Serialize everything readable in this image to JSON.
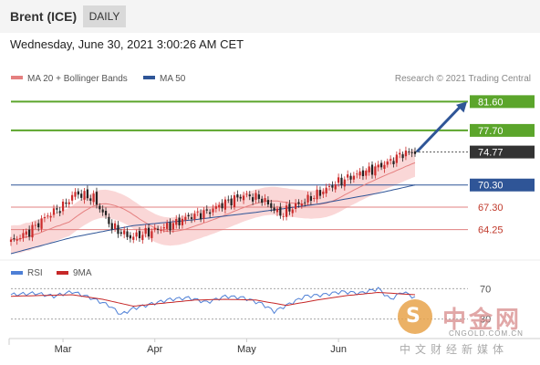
{
  "header": {
    "title": "Brent (ICE)",
    "period": "DAILY"
  },
  "timestamp": "Wednesday, June 30, 2021 3:00:26 AM CET",
  "credit": "Research © 2021 Trading Central",
  "watermark": {
    "name": "中金网",
    "url": "CNGOLD.COM.CN",
    "sub": "中文财经新媒体",
    "logo_glyph": "S"
  },
  "colors": {
    "up_candle": "#cc2a2a",
    "down_candle": "#222222",
    "bollinger": "#f4a6a6",
    "ma20": "#e58080",
    "ma50": "#2f5597",
    "resistance": "#5ba52b",
    "support_main": "#2f5597",
    "support_minor": "#e08080",
    "rsi": "#4d7fd6",
    "rsi_ma": "#c62828",
    "arrow": "#2f5597"
  },
  "chart_data": [
    {
      "type": "candlestick",
      "title": "Brent (ICE)",
      "ylim": [
        60.5,
        83.5
      ],
      "x_labels": [
        "Mar",
        "Apr",
        "May",
        "Jun"
      ],
      "legend": [
        {
          "name": "MA 20 + Bollinger Bands",
          "color": "#e58080"
        },
        {
          "name": "MA 50",
          "color": "#2f5597"
        }
      ],
      "levels": [
        {
          "value": 81.6,
          "label": "81.60",
          "kind": "resistance",
          "color": "#5ba52b"
        },
        {
          "value": 77.7,
          "label": "77.70",
          "kind": "resistance",
          "color": "#5ba52b"
        },
        {
          "value": 74.77,
          "label": "74.77",
          "kind": "last",
          "color": "#333333"
        },
        {
          "value": 70.3,
          "label": "70.30",
          "kind": "support",
          "color": "#2f5597"
        },
        {
          "value": 67.3,
          "label": "67.30",
          "kind": "support",
          "color": "#e08080"
        },
        {
          "value": 64.25,
          "label": "64.25",
          "kind": "support",
          "color": "#e08080"
        }
      ],
      "arrow": {
        "from": 74.8,
        "to": 81.6
      },
      "close_anchors": [
        [
          0,
          62.6
        ],
        [
          6,
          64.0
        ],
        [
          12,
          66.2
        ],
        [
          17,
          67.4
        ],
        [
          21,
          69.2
        ],
        [
          27,
          68.5
        ],
        [
          33,
          64.6
        ],
        [
          39,
          63.2
        ],
        [
          45,
          63.9
        ],
        [
          52,
          64.8
        ],
        [
          58,
          66.0
        ],
        [
          64,
          66.6
        ],
        [
          70,
          67.9
        ],
        [
          76,
          68.9
        ],
        [
          82,
          68.4
        ],
        [
          88,
          66.3
        ],
        [
          93,
          67.5
        ],
        [
          100,
          69.0
        ],
        [
          106,
          70.5
        ],
        [
          112,
          71.6
        ],
        [
          118,
          72.4
        ],
        [
          124,
          73.5
        ],
        [
          128,
          74.6
        ],
        [
          132,
          74.77
        ]
      ],
      "ma50_anchors": [
        [
          0,
          61.0
        ],
        [
          20,
          63.2
        ],
        [
          40,
          64.8
        ],
        [
          60,
          65.6
        ],
        [
          80,
          66.6
        ],
        [
          100,
          67.7
        ],
        [
          120,
          69.2
        ],
        [
          132,
          70.3
        ]
      ],
      "band_halfwidth": 1.9
    },
    {
      "type": "line",
      "title": "RSI",
      "series": [
        {
          "name": "RSI",
          "color": "#4d7fd6"
        },
        {
          "name": "9MA",
          "color": "#c62828"
        }
      ],
      "ylim": [
        20,
        80
      ],
      "level_labels": [
        {
          "value": 70,
          "label": "70"
        },
        {
          "value": 30,
          "label": "30"
        }
      ],
      "rsi_anchors": [
        [
          0,
          62
        ],
        [
          8,
          64
        ],
        [
          14,
          60
        ],
        [
          20,
          66
        ],
        [
          26,
          58
        ],
        [
          32,
          48
        ],
        [
          36,
          36
        ],
        [
          40,
          44
        ],
        [
          46,
          50
        ],
        [
          52,
          56
        ],
        [
          58,
          58
        ],
        [
          64,
          52
        ],
        [
          70,
          60
        ],
        [
          76,
          58
        ],
        [
          82,
          50
        ],
        [
          86,
          40
        ],
        [
          90,
          48
        ],
        [
          96,
          60
        ],
        [
          102,
          62
        ],
        [
          108,
          66
        ],
        [
          114,
          64
        ],
        [
          120,
          70
        ],
        [
          124,
          56
        ],
        [
          128,
          66
        ],
        [
          132,
          58
        ]
      ],
      "ma_anchors": [
        [
          0,
          60
        ],
        [
          10,
          61
        ],
        [
          20,
          62
        ],
        [
          30,
          56
        ],
        [
          40,
          47
        ],
        [
          50,
          51
        ],
        [
          60,
          55
        ],
        [
          70,
          56
        ],
        [
          80,
          55
        ],
        [
          90,
          48
        ],
        [
          100,
          55
        ],
        [
          110,
          61
        ],
        [
          120,
          65
        ],
        [
          132,
          62
        ]
      ]
    }
  ]
}
